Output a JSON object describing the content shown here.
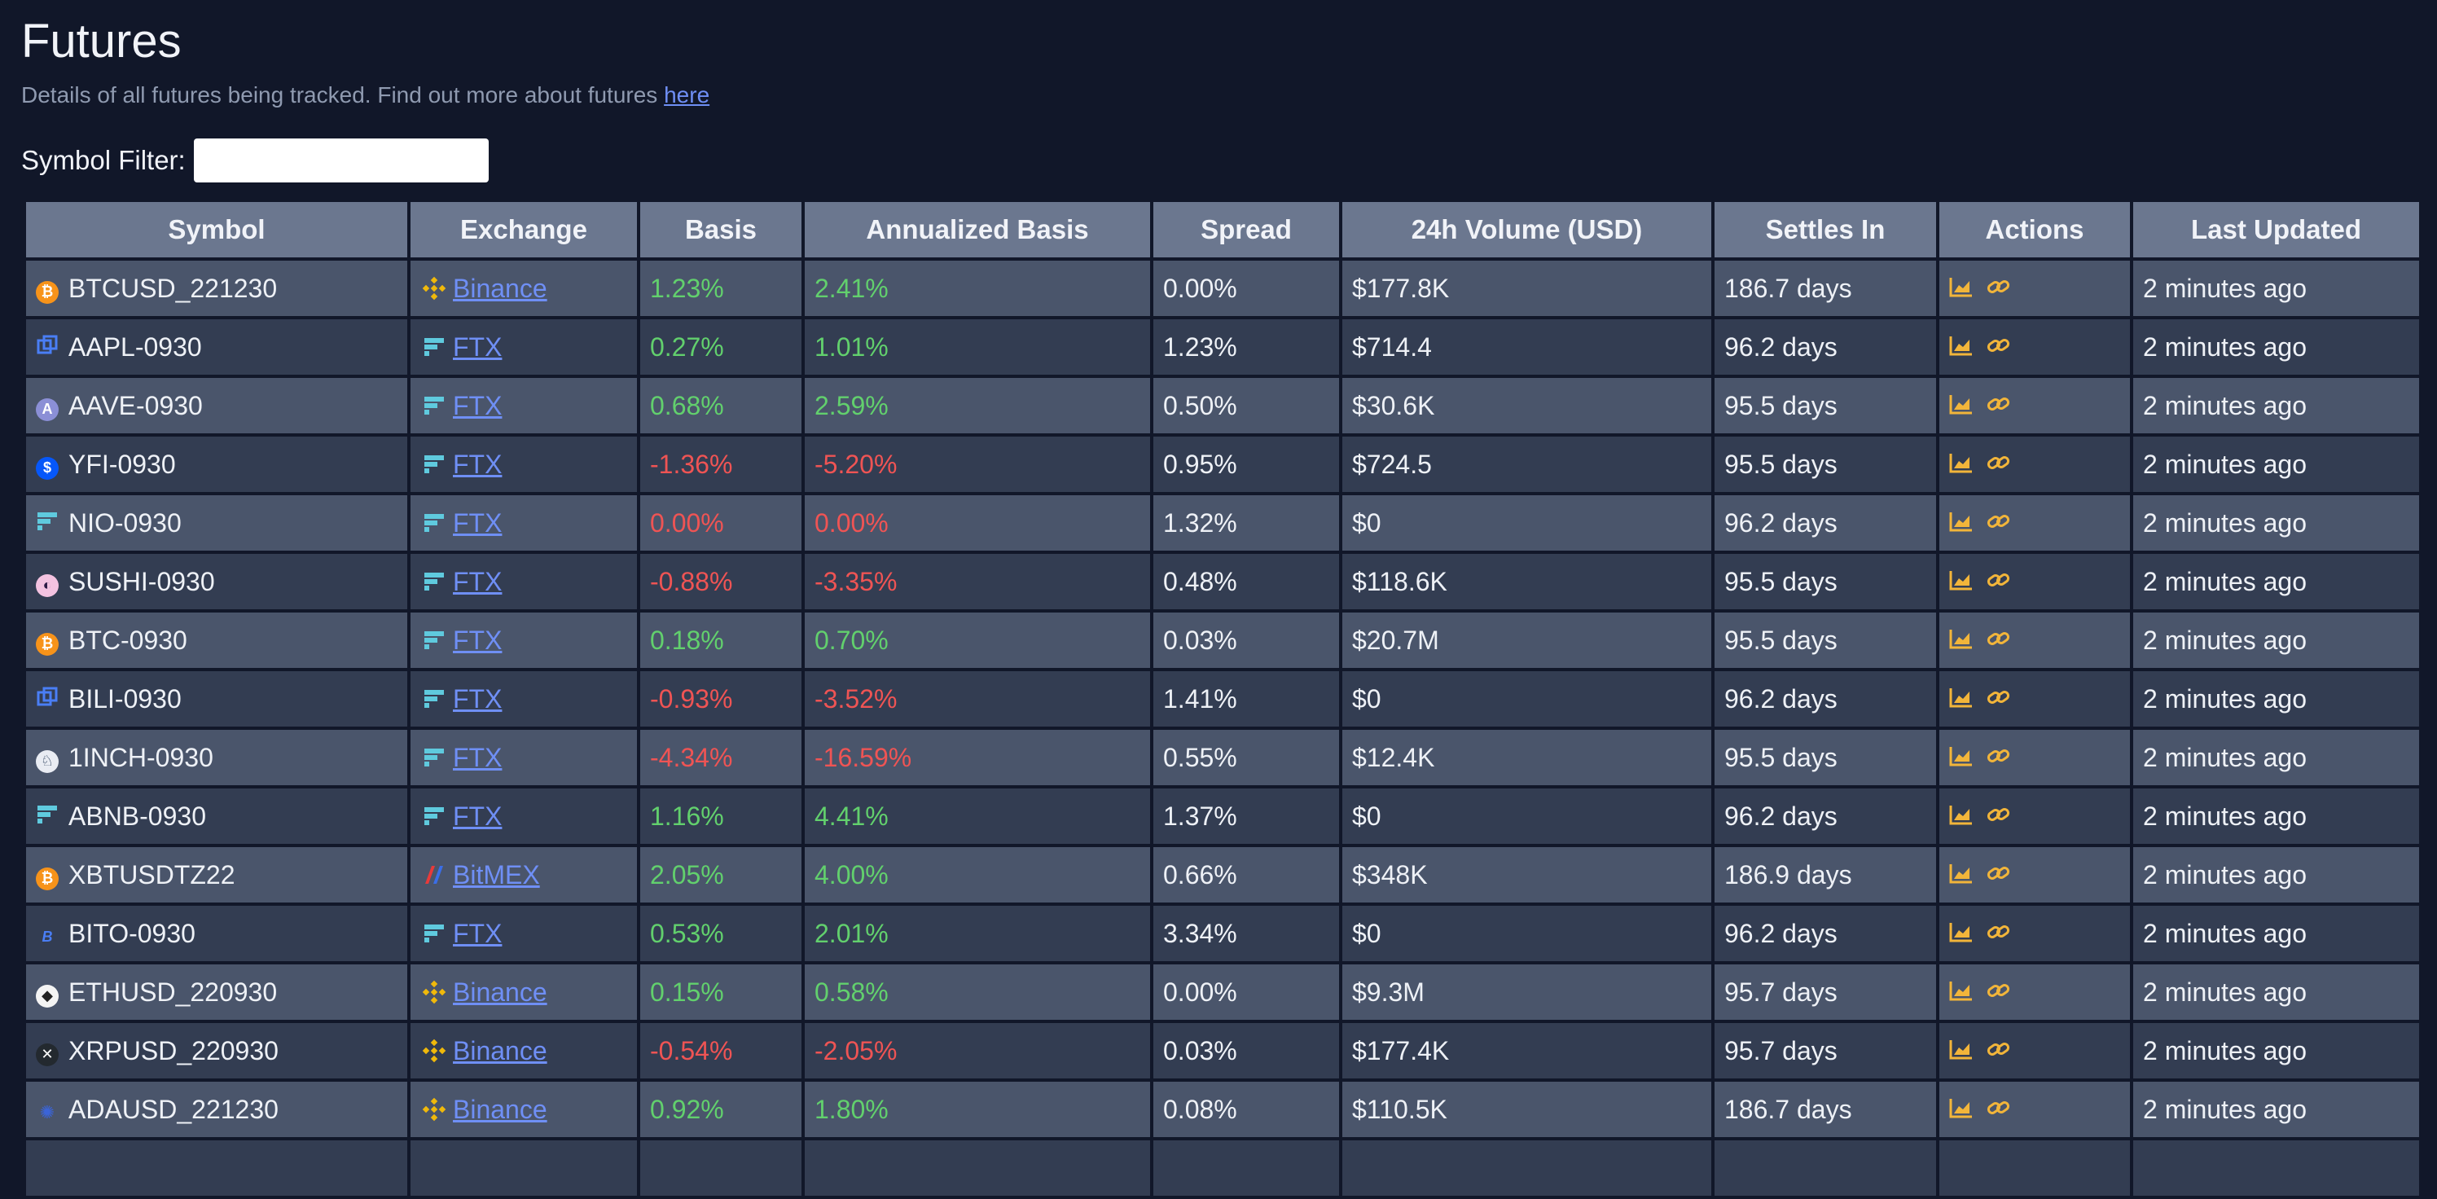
{
  "page": {
    "title": "Futures",
    "subtitle": "Details of all futures being tracked. Find out more about futures",
    "subtitle_link": "here"
  },
  "filter": {
    "label": "Symbol Filter:",
    "value": "",
    "placeholder": ""
  },
  "columns": [
    "Symbol",
    "Exchange",
    "Basis",
    "Annualized Basis",
    "Spread",
    "24h Volume (USD)",
    "Settles In",
    "Actions",
    "Last Updated"
  ],
  "colors": {
    "positive": "#62d06d",
    "negative": "#ef5454",
    "link": "#6f8ff5",
    "action": "#f2b53a"
  },
  "rows": [
    {
      "symbol": "BTCUSD_221230",
      "coin_icon": "bitcoin-icon",
      "exchange": "Binance",
      "exchange_icon": "binance-icon",
      "basis": "1.23%",
      "annualized": "2.41%",
      "sign": "pos",
      "spread": "0.00%",
      "volume": "$177.8K",
      "settles": "186.7 days",
      "updated": "2 minutes ago"
    },
    {
      "symbol": "AAPL-0930",
      "coin_icon": "stock-icon",
      "exchange": "FTX",
      "exchange_icon": "ftx-icon",
      "basis": "0.27%",
      "annualized": "1.01%",
      "sign": "pos",
      "spread": "1.23%",
      "volume": "$714.4",
      "settles": "96.2 days",
      "updated": "2 minutes ago"
    },
    {
      "symbol": "AAVE-0930",
      "coin_icon": "aave-icon",
      "exchange": "FTX",
      "exchange_icon": "ftx-icon",
      "basis": "0.68%",
      "annualized": "2.59%",
      "sign": "pos",
      "spread": "0.50%",
      "volume": "$30.6K",
      "settles": "95.5 days",
      "updated": "2 minutes ago"
    },
    {
      "symbol": "YFI-0930",
      "coin_icon": "yfi-icon",
      "exchange": "FTX",
      "exchange_icon": "ftx-icon",
      "basis": "-1.36%",
      "annualized": "-5.20%",
      "sign": "neg",
      "spread": "0.95%",
      "volume": "$724.5",
      "settles": "95.5 days",
      "updated": "2 minutes ago"
    },
    {
      "symbol": "NIO-0930",
      "coin_icon": "ftx-icon",
      "exchange": "FTX",
      "exchange_icon": "ftx-icon",
      "basis": "0.00%",
      "annualized": "0.00%",
      "sign": "neg",
      "spread": "1.32%",
      "volume": "$0",
      "settles": "96.2 days",
      "updated": "2 minutes ago"
    },
    {
      "symbol": "SUSHI-0930",
      "coin_icon": "sushi-icon",
      "exchange": "FTX",
      "exchange_icon": "ftx-icon",
      "basis": "-0.88%",
      "annualized": "-3.35%",
      "sign": "neg",
      "spread": "0.48%",
      "volume": "$118.6K",
      "settles": "95.5 days",
      "updated": "2 minutes ago"
    },
    {
      "symbol": "BTC-0930",
      "coin_icon": "bitcoin-icon",
      "exchange": "FTX",
      "exchange_icon": "ftx-icon",
      "basis": "0.18%",
      "annualized": "0.70%",
      "sign": "pos",
      "spread": "0.03%",
      "volume": "$20.7M",
      "settles": "95.5 days",
      "updated": "2 minutes ago"
    },
    {
      "symbol": "BILI-0930",
      "coin_icon": "stock-icon",
      "exchange": "FTX",
      "exchange_icon": "ftx-icon",
      "basis": "-0.93%",
      "annualized": "-3.52%",
      "sign": "neg",
      "spread": "1.41%",
      "volume": "$0",
      "settles": "96.2 days",
      "updated": "2 minutes ago"
    },
    {
      "symbol": "1INCH-0930",
      "coin_icon": "1inch-icon",
      "exchange": "FTX",
      "exchange_icon": "ftx-icon",
      "basis": "-4.34%",
      "annualized": "-16.59%",
      "sign": "neg",
      "spread": "0.55%",
      "volume": "$12.4K",
      "settles": "95.5 days",
      "updated": "2 minutes ago"
    },
    {
      "symbol": "ABNB-0930",
      "coin_icon": "ftx-icon",
      "exchange": "FTX",
      "exchange_icon": "ftx-icon",
      "basis": "1.16%",
      "annualized": "4.41%",
      "sign": "pos",
      "spread": "1.37%",
      "volume": "$0",
      "settles": "96.2 days",
      "updated": "2 minutes ago"
    },
    {
      "symbol": "XBTUSDTZ22",
      "coin_icon": "bitcoin-icon",
      "exchange": "BitMEX",
      "exchange_icon": "bitmex-icon",
      "basis": "2.05%",
      "annualized": "4.00%",
      "sign": "pos",
      "spread": "0.66%",
      "volume": "$348K",
      "settles": "186.9 days",
      "updated": "2 minutes ago"
    },
    {
      "symbol": "BITO-0930",
      "coin_icon": "bito-icon",
      "exchange": "FTX",
      "exchange_icon": "ftx-icon",
      "basis": "0.53%",
      "annualized": "2.01%",
      "sign": "pos",
      "spread": "3.34%",
      "volume": "$0",
      "settles": "96.2 days",
      "updated": "2 minutes ago"
    },
    {
      "symbol": "ETHUSD_220930",
      "coin_icon": "ethereum-icon",
      "exchange": "Binance",
      "exchange_icon": "binance-icon",
      "basis": "0.15%",
      "annualized": "0.58%",
      "sign": "pos",
      "spread": "0.00%",
      "volume": "$9.3M",
      "settles": "95.7 days",
      "updated": "2 minutes ago"
    },
    {
      "symbol": "XRPUSD_220930",
      "coin_icon": "xrp-icon",
      "exchange": "Binance",
      "exchange_icon": "binance-icon",
      "basis": "-0.54%",
      "annualized": "-2.05%",
      "sign": "neg",
      "spread": "0.03%",
      "volume": "$177.4K",
      "settles": "95.7 days",
      "updated": "2 minutes ago"
    },
    {
      "symbol": "ADAUSD_221230",
      "coin_icon": "cardano-icon",
      "exchange": "Binance",
      "exchange_icon": "binance-icon",
      "basis": "0.92%",
      "annualized": "1.80%",
      "sign": "pos",
      "spread": "0.08%",
      "volume": "$110.5K",
      "settles": "186.7 days",
      "updated": "2 minutes ago"
    },
    {
      "symbol": "",
      "coin_icon": "",
      "exchange": "",
      "exchange_icon": "",
      "basis": "",
      "annualized": "",
      "sign": "pos",
      "spread": "",
      "volume": "",
      "settles": "",
      "updated": ""
    }
  ]
}
